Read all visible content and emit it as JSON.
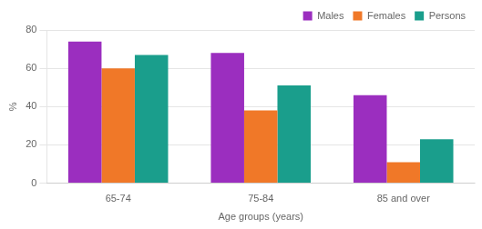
{
  "chart_data": {
    "type": "bar",
    "categories": [
      "65-74",
      "75-84",
      "85 and over"
    ],
    "series": [
      {
        "name": "Males",
        "color": "#9B2EBF",
        "values": [
          74,
          68,
          46
        ]
      },
      {
        "name": "Females",
        "color": "#F07828",
        "values": [
          60,
          38,
          11
        ]
      },
      {
        "name": "Persons",
        "color": "#1A9E8C",
        "values": [
          67,
          51,
          23
        ]
      }
    ],
    "xlabel": "Age groups (years)",
    "ylabel": "%",
    "ylim": [
      0,
      80
    ],
    "yticks": [
      0,
      20,
      40,
      60,
      80
    ],
    "grid": true,
    "legend": "top-right"
  }
}
